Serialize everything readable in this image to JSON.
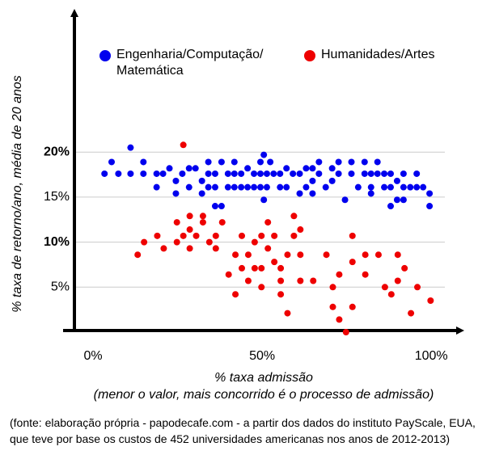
{
  "chart_data": {
    "type": "scatter",
    "ylabel": "% taxa de retorno/ano, média de 20 anos",
    "xlabel": "% taxa admissão",
    "xlabel_note": "(menor o valor, mais concorrido é o processo de admissão)",
    "xlim": [
      -5.5,
      110
    ],
    "ylim": [
      0,
      36
    ],
    "xticks": [
      {
        "value": 0,
        "label": "0%"
      },
      {
        "value": 50,
        "label": "50%"
      },
      {
        "value": 100,
        "label": "100%"
      }
    ],
    "yticks": [
      {
        "value": 5,
        "label": "5%"
      },
      {
        "value": 10,
        "label": "10%"
      },
      {
        "value": 15,
        "label": "15%"
      },
      {
        "value": 20,
        "label": "20%"
      }
    ],
    "grid": true,
    "series": [
      {
        "name": "Engenharia/Computação/ Matemática",
        "color": "#0000ee",
        "x": [
          3.4,
          5.5,
          7.5,
          11.1,
          11.1,
          14.9,
          14.9,
          18.8,
          18.8,
          20.7,
          22.6,
          24.5,
          24.5,
          26.4,
          28.4,
          28.4,
          30.3,
          32.2,
          32.2,
          34.1,
          34.1,
          34.1,
          36.1,
          36.1,
          36.1,
          38,
          38,
          39.9,
          39.9,
          41.8,
          41.8,
          41.8,
          43.8,
          43.8,
          45.7,
          45.7,
          47.6,
          47.6,
          49.5,
          49.5,
          49.5,
          50.5,
          50.5,
          51.4,
          51.4,
          52.4,
          53.4,
          55.3,
          55.3,
          57.2,
          57.2,
          59.1,
          61.1,
          61.1,
          63,
          63,
          64.9,
          64.9,
          64.9,
          66.8,
          66.8,
          68.8,
          70.7,
          70.7,
          72.6,
          72.6,
          74.5,
          76.4,
          76.4,
          78.4,
          80.3,
          80.3,
          82.2,
          82.2,
          84.1,
          84.1,
          86.1,
          86.1,
          88,
          88,
          89.9,
          91.8,
          91.8,
          93.8,
          95.7,
          95.7,
          97.6,
          99.5,
          99.5,
          89.9,
          88,
          91.8,
          82.2
        ],
        "values": [
          17.6,
          18.9,
          17.6,
          20.5,
          17.6,
          18.9,
          17.6,
          17.6,
          16.1,
          17.6,
          18.2,
          16.8,
          15.4,
          17.6,
          18.2,
          16.1,
          18.2,
          16.8,
          15.4,
          18.9,
          17.6,
          16.1,
          17.6,
          16.1,
          14,
          18.9,
          14,
          17.6,
          16.1,
          18.9,
          17.6,
          16.1,
          17.6,
          16.1,
          18.2,
          16.1,
          17.6,
          16.1,
          18.9,
          17.6,
          16.1,
          19.7,
          14.7,
          17.6,
          16.1,
          18.9,
          17.6,
          17.6,
          16.1,
          18.2,
          16.1,
          17.6,
          17.6,
          15.4,
          18.2,
          16.1,
          18.2,
          16.8,
          15.4,
          18.9,
          17.6,
          16.1,
          18.2,
          16.8,
          18.9,
          17.6,
          14.7,
          18.9,
          17.6,
          16.1,
          18.9,
          17.6,
          17.6,
          16.1,
          18.9,
          17.6,
          17.6,
          16.1,
          17.6,
          16.1,
          16.8,
          17.6,
          16.1,
          16.1,
          17.6,
          16.1,
          16.1,
          15.4,
          14,
          14.7,
          14,
          14.7,
          15.4
        ]
      },
      {
        "name": "Humanidades/Artes",
        "color": "#ee0000",
        "x": [
          13.2,
          15.1,
          19,
          20.9,
          24.8,
          24.8,
          26.7,
          26.7,
          28.6,
          28.6,
          28.6,
          30.5,
          32.5,
          32.5,
          34.4,
          36.3,
          36.3,
          38.2,
          40.1,
          42.1,
          42.1,
          44,
          44,
          45.9,
          45.9,
          47.8,
          47.8,
          49.8,
          49.8,
          49.8,
          51.7,
          51.7,
          53.6,
          53.6,
          55.5,
          55.5,
          55.5,
          57.5,
          57.5,
          59.4,
          59.4,
          61.3,
          61.3,
          61.3,
          65.1,
          69,
          70.9,
          70.9,
          72.8,
          72.8,
          74.8,
          76.7,
          76.7,
          76.7,
          80.5,
          80.5,
          84.4,
          86.3,
          88.2,
          90.1,
          92.1,
          90.1,
          94,
          95.9,
          99.8
        ],
        "values": [
          8.6,
          10,
          10.7,
          9.3,
          10,
          12.2,
          20.8,
          10.7,
          12.9,
          11.4,
          9.3,
          10.7,
          12.9,
          12.2,
          10,
          10.7,
          9.3,
          12.2,
          6.4,
          8.6,
          4.2,
          7.1,
          10.7,
          5.7,
          8.6,
          10,
          7.1,
          5,
          7.1,
          10.7,
          12.2,
          9.3,
          10.7,
          7.8,
          5.7,
          7.1,
          4.2,
          8.6,
          2.1,
          12.9,
          10.7,
          8.6,
          5.7,
          11.4,
          5.7,
          8.6,
          5,
          2.8,
          6.4,
          1.4,
          0,
          10.7,
          7.8,
          2.8,
          8.6,
          6.4,
          8.6,
          5,
          4.2,
          8.6,
          7.1,
          5.7,
          2.1,
          5,
          3.5
        ]
      }
    ]
  },
  "footnote": "(fonte: elaboração própria - papodecafe.com - a partir dos dados do instituto PayScale, EUA, que teve por base os custos de 452 universidades americanas nos anos de 2012-2013)"
}
